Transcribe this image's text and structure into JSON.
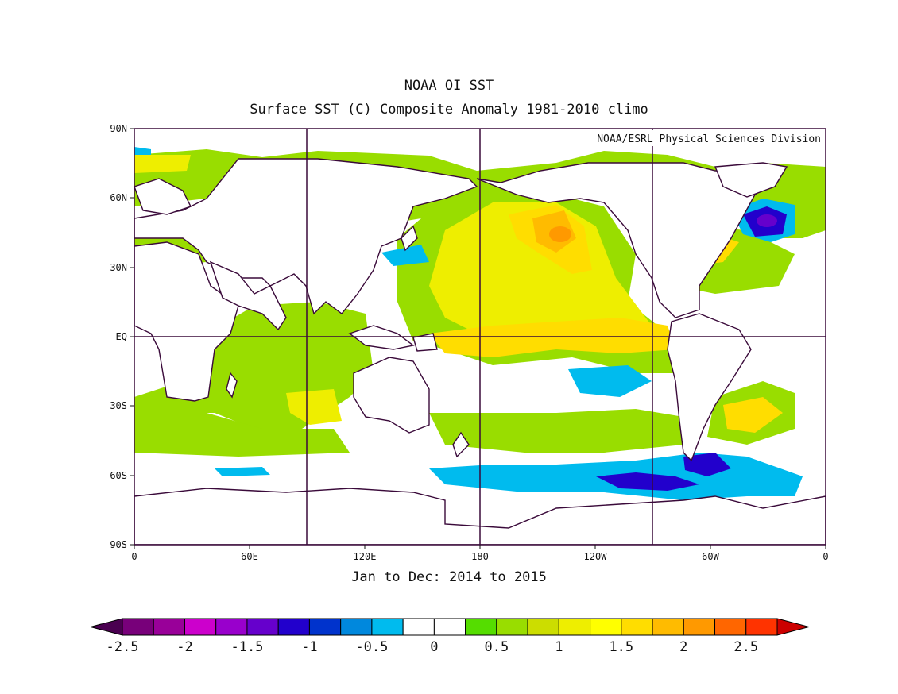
{
  "header": {
    "title": "NOAA OI SST",
    "subtitle": "Surface SST (C) Composite Anomaly 1981-2010 climo",
    "credit": "NOAA/ESRL Physical Sciences Division",
    "period": "Jan to Dec: 2014 to 2015"
  },
  "axes": {
    "lat_labels": [
      "90N",
      "60N",
      "30N",
      "EQ",
      "30S",
      "60S",
      "90S"
    ],
    "lon_labels": [
      "0",
      "60E",
      "120E",
      "180",
      "120W",
      "60W",
      "0"
    ]
  },
  "colorbar": {
    "tick_labels": [
      "-2.5",
      "-2",
      "-1.5",
      "-1",
      "-0.5",
      "0",
      "0.5",
      "1",
      "1.5",
      "2",
      "2.5"
    ],
    "colors": [
      "#4a0050",
      "#78007a",
      "#990099",
      "#cc00cc",
      "#9900cc",
      "#6600cc",
      "#2200cc",
      "#0033cc",
      "#0088dd",
      "#00bbee",
      "#ffffff",
      "#ffffff",
      "#55dd00",
      "#99dd00",
      "#ccdd00",
      "#eeee00",
      "#ffff00",
      "#ffdd00",
      "#ffbb00",
      "#ff9900",
      "#ff6600",
      "#ff3300",
      "#cc0000"
    ]
  },
  "colors": {
    "land_outline": "#3a0a3a",
    "grid": "#3a0a3a"
  }
}
